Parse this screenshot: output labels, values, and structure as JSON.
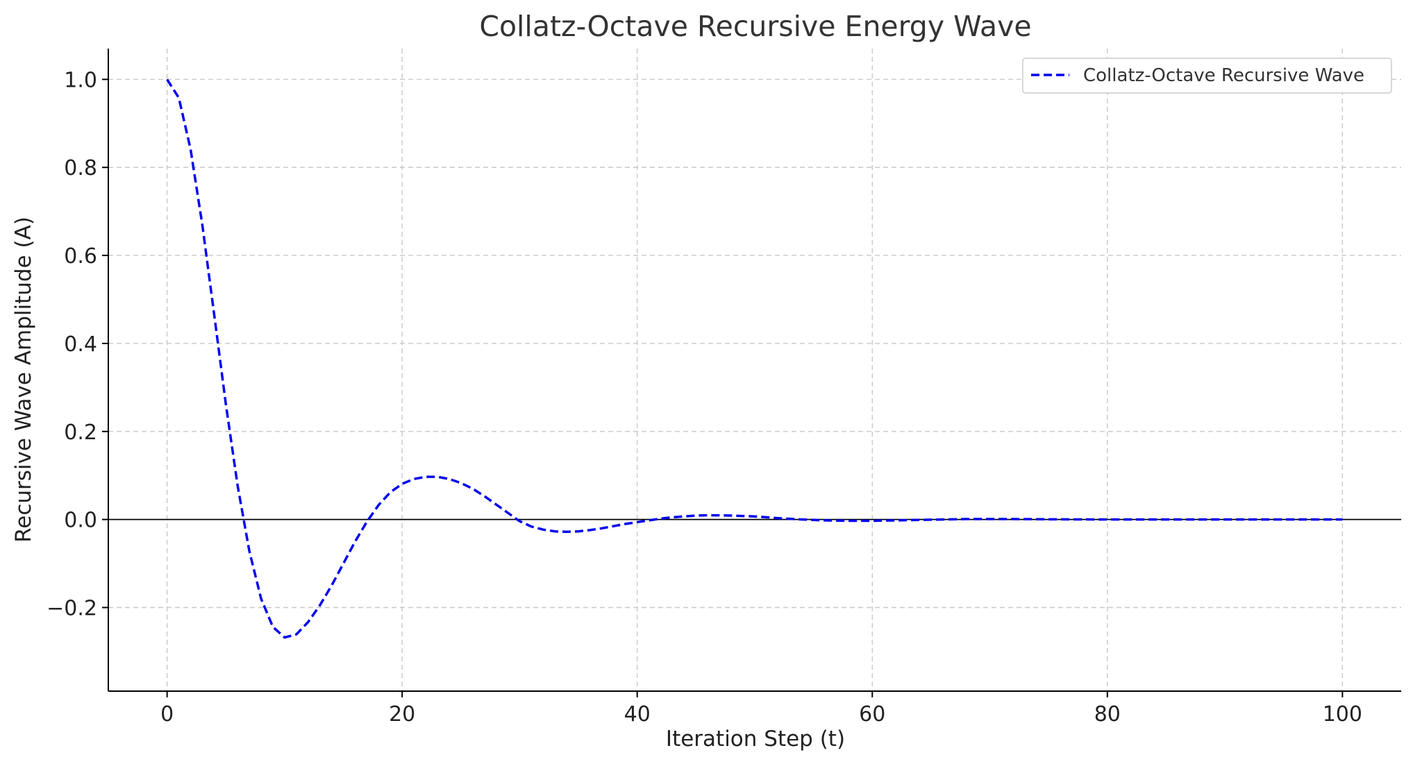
{
  "chart_data": {
    "type": "line",
    "title": "Collatz-Octave Recursive Energy Wave",
    "xlabel": "Iteration Step (t)",
    "ylabel": "Recursive Wave Amplitude (A)",
    "xlim": [
      -5,
      105
    ],
    "ylim": [
      -0.39,
      1.07
    ],
    "xticks": [
      0,
      20,
      40,
      60,
      80,
      100
    ],
    "yticks": [
      -0.2,
      0.0,
      0.2,
      0.4,
      0.6,
      0.8,
      1.0
    ],
    "xtick_labels": [
      "0",
      "20",
      "40",
      "60",
      "80",
      "100"
    ],
    "ytick_labels": [
      "−0.2",
      "0.0",
      "0.2",
      "0.4",
      "0.6",
      "0.8",
      "1.0"
    ],
    "grid": true,
    "zero_line": true,
    "legend_position": "top-right",
    "series": [
      {
        "name": "Collatz-Octave Recursive Wave",
        "color": "#0000ee",
        "style": "dashed",
        "x": [
          0,
          1,
          2,
          3,
          4,
          5,
          6,
          7,
          8,
          9,
          10,
          11,
          12,
          13,
          14,
          15,
          16,
          17,
          18,
          19,
          20,
          21,
          22,
          23,
          24,
          25,
          26,
          27,
          28,
          29,
          30,
          31,
          32,
          33,
          34,
          35,
          36,
          37,
          38,
          39,
          40,
          41,
          42,
          43,
          44,
          45,
          46,
          47,
          48,
          49,
          50,
          52,
          54,
          56,
          58,
          60,
          62,
          64,
          66,
          68,
          70,
          72,
          75,
          80,
          85,
          90,
          95,
          100
        ],
        "y": [
          1.0,
          0.958,
          0.841,
          0.669,
          0.467,
          0.262,
          0.077,
          -0.072,
          -0.18,
          -0.244,
          -0.268,
          -0.261,
          -0.233,
          -0.195,
          -0.15,
          -0.1,
          -0.05,
          -0.005,
          0.033,
          0.062,
          0.081,
          0.092,
          0.097,
          0.097,
          0.092,
          0.083,
          0.07,
          0.053,
          0.034,
          0.015,
          -0.004,
          -0.016,
          -0.023,
          -0.027,
          -0.028,
          -0.027,
          -0.024,
          -0.02,
          -0.015,
          -0.01,
          -0.006,
          -0.002,
          0.002,
          0.005,
          0.007,
          0.009,
          0.0095,
          0.0095,
          0.009,
          0.008,
          0.007,
          0.003,
          0.0,
          -0.002,
          -0.003,
          -0.003,
          -0.002,
          -0.001,
          0.0,
          0.001,
          0.001,
          0.001,
          0.0005,
          0.0,
          0.0,
          0.0,
          0.0,
          0.0
        ]
      }
    ]
  }
}
